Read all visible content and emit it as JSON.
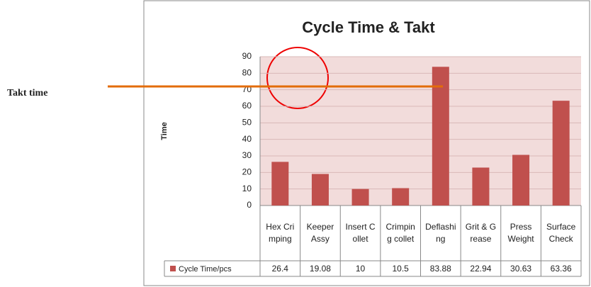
{
  "chart_data": {
    "type": "bar",
    "title": "Cycle Time & Takt",
    "y_label": "Time",
    "categories": [
      "Hex Crimping",
      "Keeper Assy",
      "Insert Collet",
      "Crimping collet",
      "Deflashing",
      "Grit & Grease",
      "Press Weight",
      "Surface Check"
    ],
    "series": [
      {
        "name": "Cycle Time/pcs",
        "color": "#c0504d",
        "values": [
          26.4,
          19.08,
          10,
          10.5,
          83.88,
          22.94,
          30.63,
          63.36
        ]
      }
    ],
    "ylim": [
      0,
      90
    ],
    "yticks": [
      0,
      10,
      20,
      30,
      40,
      50,
      60,
      70,
      80,
      90
    ],
    "grid": true,
    "takt_time": {
      "label": "Takt time",
      "value": 72,
      "color": "#e36c0a"
    }
  }
}
